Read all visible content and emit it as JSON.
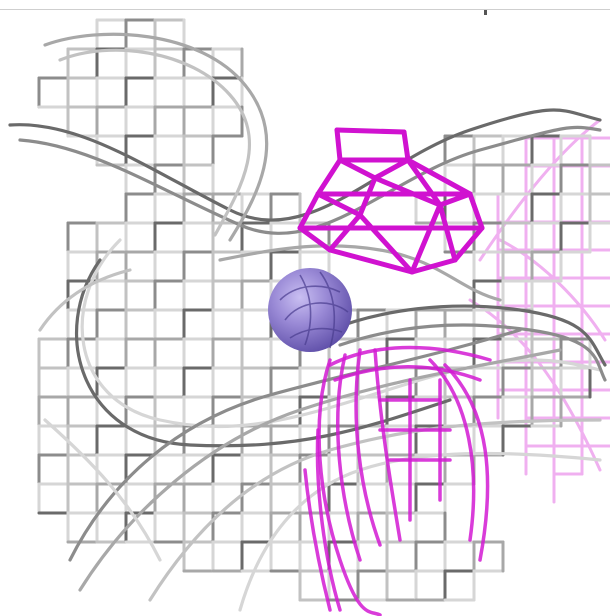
{
  "scene": {
    "background": "#ffffff",
    "colors": {
      "mesh_gray_dark": "#6f6f6f",
      "mesh_gray_mid": "#9a9a9a",
      "mesh_gray_light": "#c8c8c8",
      "mesh_magenta": "#d21ad2",
      "mesh_magenta_light": "#f0a8f0",
      "sphere": "#9a8ad6",
      "sphere_dark": "#5e4ea8"
    },
    "objects": [
      {
        "name": "gray-density-mesh",
        "color": "gray"
      },
      {
        "name": "magenta-density-cap",
        "color": "magenta"
      },
      {
        "name": "magenta-density-lower",
        "color": "magenta"
      },
      {
        "name": "light-magenta-density-right",
        "color": "light-magenta"
      },
      {
        "name": "ion-sphere",
        "color": "lavender"
      }
    ]
  }
}
